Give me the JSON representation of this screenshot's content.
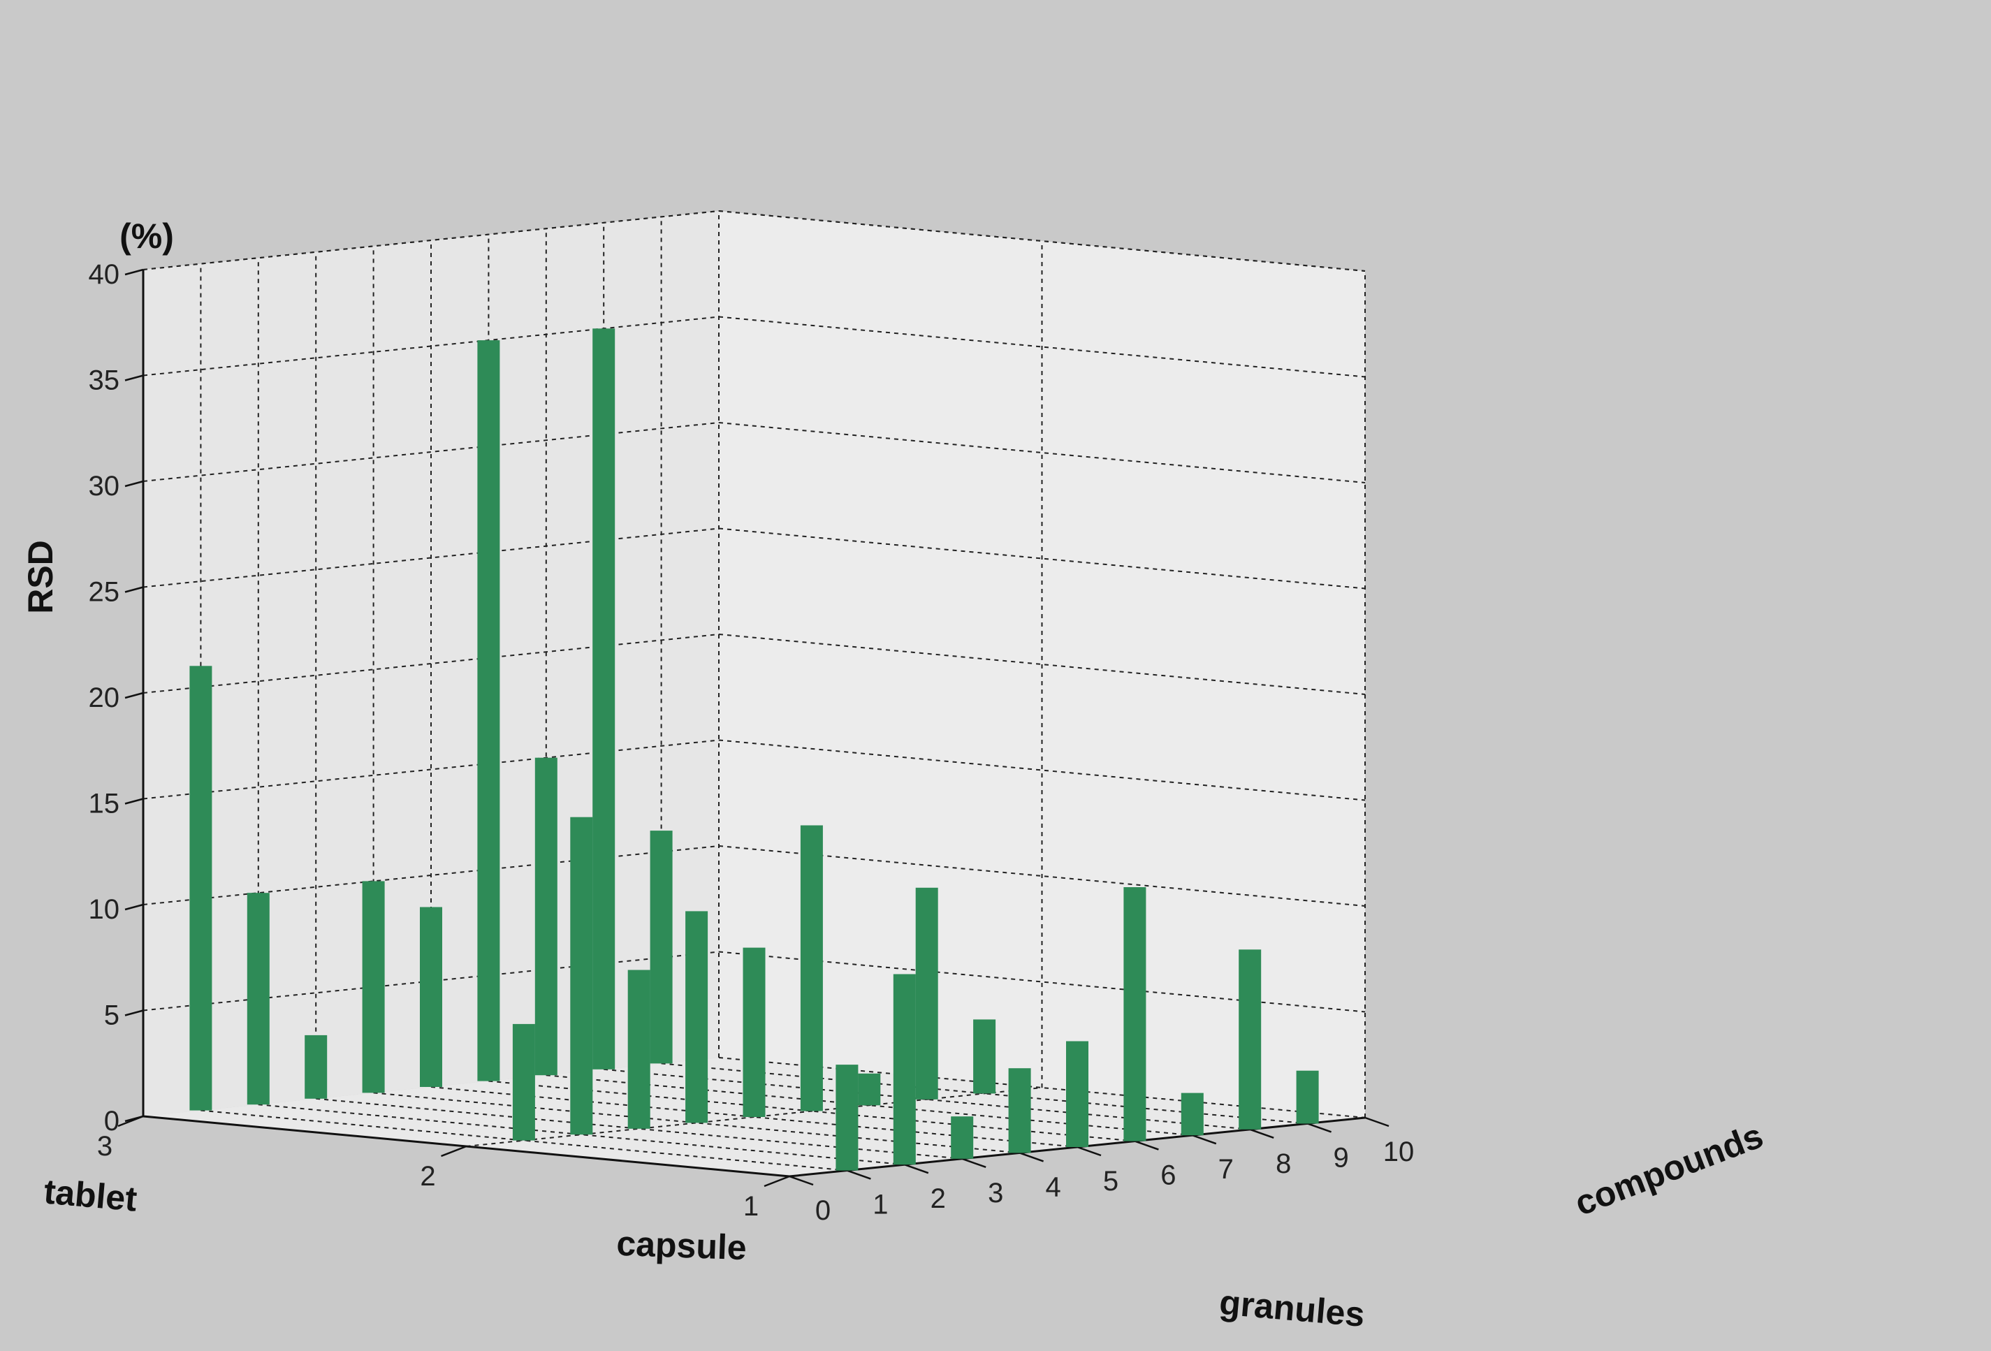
{
  "chart_data": {
    "type": "bar",
    "subtype": "3d-bar",
    "title": "",
    "zlabel": "RSD",
    "zunit": "(%)",
    "zlim": [
      0,
      40
    ],
    "zticks": [
      0,
      5,
      10,
      15,
      20,
      25,
      30,
      35,
      40
    ],
    "xlabel": "compounds",
    "xticks": [
      0,
      1,
      2,
      3,
      4,
      5,
      6,
      7,
      8,
      9,
      10
    ],
    "ylabels": {
      "tablet": "tablet",
      "capsule": "capsule",
      "granules": "granules"
    },
    "yticks": [
      1,
      2,
      3
    ],
    "grid": true,
    "bar_color": "#2e8b57",
    "series": [
      {
        "row": 3,
        "category": "tablet",
        "compounds": [
          1,
          2,
          3,
          4,
          5,
          6,
          7,
          8,
          9
        ],
        "values": [
          21,
          10,
          3,
          10,
          8.5,
          35,
          15,
          35,
          11
        ]
      },
      {
        "row": 2,
        "category": "capsule",
        "compounds": [
          1,
          2,
          3,
          4,
          5,
          6,
          7,
          8,
          9
        ],
        "values": [
          5.5,
          15,
          7.5,
          10,
          8,
          13.5,
          1.5,
          10,
          3.5
        ]
      },
      {
        "row": 1,
        "category": "granules",
        "compounds": [
          1,
          2,
          3,
          4,
          5,
          6,
          7,
          8,
          9
        ],
        "values": [
          5,
          9,
          2,
          4,
          5,
          12,
          2,
          8.5,
          2.5
        ]
      }
    ]
  }
}
